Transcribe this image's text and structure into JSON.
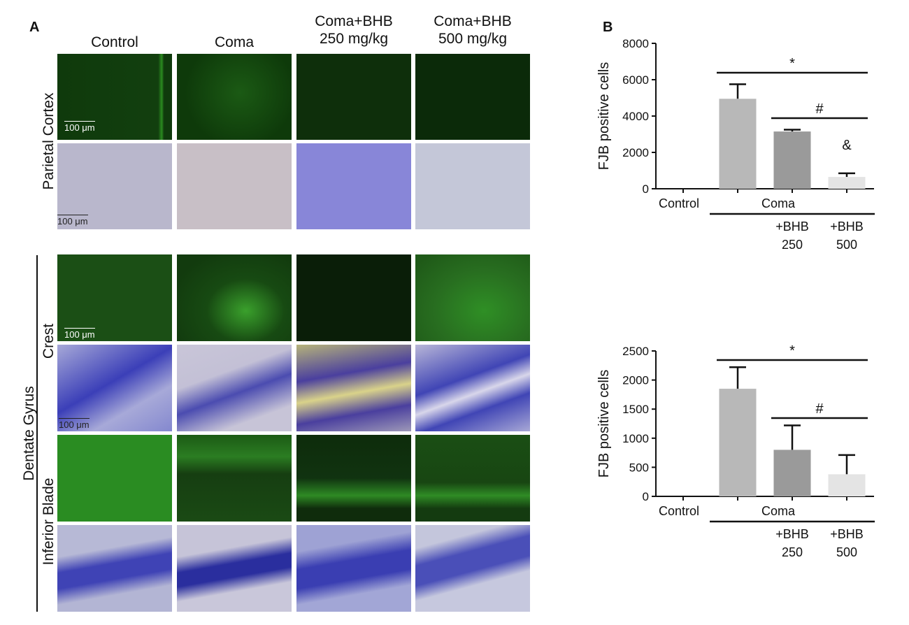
{
  "panel_a": {
    "letter": "A",
    "columns": [
      "Control",
      "Coma",
      "Coma+BHB\n250 mg/kg",
      "Coma+BHB\n500 mg/kg"
    ],
    "col_line1": [
      "Control",
      "Coma",
      "Coma+BHB",
      "Coma+BHB"
    ],
    "col_line2": [
      "",
      "",
      "250 mg/kg",
      "500 mg/kg"
    ],
    "row_labels": {
      "parietal": "Parietal Cortex",
      "dentate": "Dentate Gyrus",
      "crest": "Crest",
      "inferior": "Inferior Blade"
    },
    "scale_bar": "100 μm"
  },
  "panel_b": {
    "letter": "B"
  },
  "chart_data": [
    {
      "type": "bar",
      "ylabel": "FJB positive cells",
      "ylim": [
        0,
        8000
      ],
      "yticks": [
        0,
        2000,
        4000,
        6000,
        8000
      ],
      "categories": [
        "Control",
        "Coma",
        "Coma +BHB 250",
        "Coma +BHB 500"
      ],
      "values": [
        0,
        4950,
        3150,
        650
      ],
      "errors": [
        0,
        800,
        100,
        200
      ],
      "bar_colors": [
        "#cfcfcf",
        "#b8b8b8",
        "#9a9a9a",
        "#e4e4e4"
      ],
      "x_labels": {
        "control": "Control",
        "group": "Coma",
        "sub1": [
          "+BHB",
          "250"
        ],
        "sub2": [
          "+BHB",
          "500"
        ]
      },
      "annotations": [
        "*",
        "#",
        "&"
      ]
    },
    {
      "type": "bar",
      "ylabel": "FJB positive cells",
      "ylim": [
        0,
        2500
      ],
      "yticks": [
        0,
        500,
        1000,
        1500,
        2000,
        2500
      ],
      "categories": [
        "Control",
        "Coma",
        "Coma +BHB 250",
        "Coma +BHB 500"
      ],
      "values": [
        0,
        1850,
        800,
        380
      ],
      "errors": [
        0,
        370,
        420,
        330
      ],
      "bar_colors": [
        "#cfcfcf",
        "#b8b8b8",
        "#9a9a9a",
        "#e4e4e4"
      ],
      "x_labels": {
        "control": "Control",
        "group": "Coma",
        "sub1": [
          "+BHB",
          "250"
        ],
        "sub2": [
          "+BHB",
          "500"
        ]
      },
      "annotations": [
        "*",
        "#"
      ]
    }
  ]
}
